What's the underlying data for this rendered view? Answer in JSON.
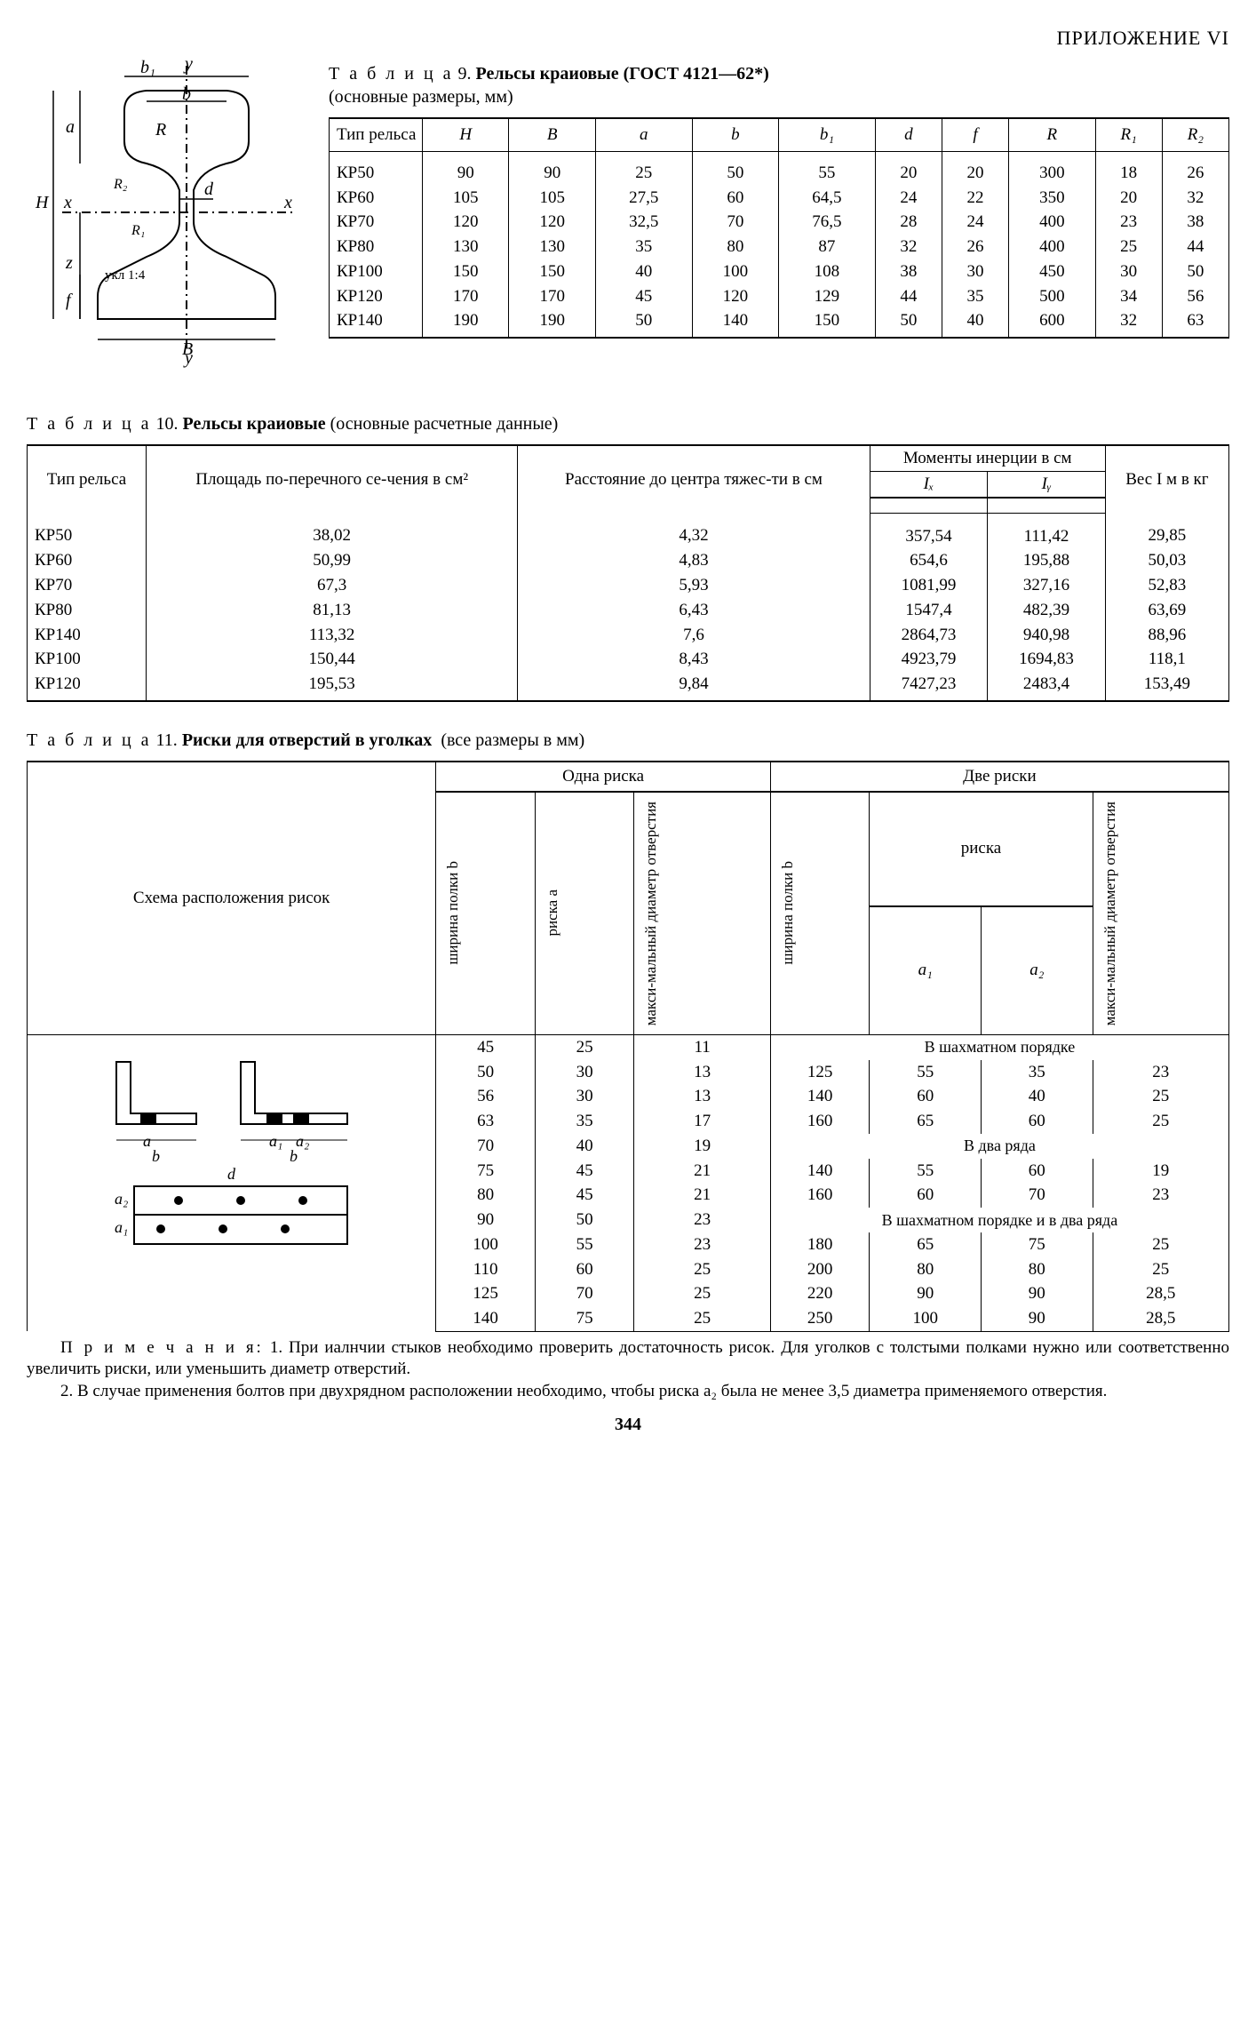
{
  "appendix": "ПРИЛОЖЕНИЕ VI",
  "table9": {
    "caption_prefix": "Т а б л и ц а",
    "caption_num": "9.",
    "caption_title": "Рельсы краиовые (ГОСТ 4121—62*)",
    "caption_sub": "(основные размеры, мм)",
    "headers": [
      "Тип рельса",
      "H",
      "B",
      "a",
      "b",
      "b₁",
      "d",
      "f",
      "R",
      "R₁",
      "R₂"
    ],
    "rows": [
      [
        "КР50",
        "90",
        "90",
        "25",
        "50",
        "55",
        "20",
        "20",
        "300",
        "18",
        "26"
      ],
      [
        "КР60",
        "105",
        "105",
        "27,5",
        "60",
        "64,5",
        "24",
        "22",
        "350",
        "20",
        "32"
      ],
      [
        "КР70",
        "120",
        "120",
        "32,5",
        "70",
        "76,5",
        "28",
        "24",
        "400",
        "23",
        "38"
      ],
      [
        "КР80",
        "130",
        "130",
        "35",
        "80",
        "87",
        "32",
        "26",
        "400",
        "25",
        "44"
      ],
      [
        "КР100",
        "150",
        "150",
        "40",
        "100",
        "108",
        "38",
        "30",
        "450",
        "30",
        "50"
      ],
      [
        "КР120",
        "170",
        "170",
        "45",
        "120",
        "129",
        "44",
        "35",
        "500",
        "34",
        "56"
      ],
      [
        "КР140",
        "190",
        "190",
        "50",
        "140",
        "150",
        "50",
        "40",
        "600",
        "32",
        "63"
      ]
    ]
  },
  "table10": {
    "caption_prefix": "Т а б л и ц а",
    "caption_num": "10.",
    "caption_title": "Рельсы краиовые",
    "caption_sub": "(основные расчетные данные)",
    "headers": {
      "c1": "Тип рельса",
      "c2": "Площадь по-перечного се-чения в см²",
      "c3": "Расстояние до центра тяжес-ти в см",
      "c4_top": "Моменты инерции в см",
      "c4a": "Iₓ",
      "c4b": "Iᵧ",
      "c5": "Вес I м в кг"
    },
    "rows": [
      [
        "КР50",
        "38,02",
        "4,32",
        "357,54",
        "111,42",
        "29,85"
      ],
      [
        "КР60",
        "50,99",
        "4,83",
        "654,6",
        "195,88",
        "50,03"
      ],
      [
        "КР70",
        "67,3",
        "5,93",
        "1081,99",
        "327,16",
        "52,83"
      ],
      [
        "КР80",
        "81,13",
        "6,43",
        "1547,4",
        "482,39",
        "63,69"
      ],
      [
        "КР140",
        "113,32",
        "7,6",
        "2864,73",
        "940,98",
        "88,96"
      ],
      [
        "КР100",
        "150,44",
        "8,43",
        "4923,79",
        "1694,83",
        "118,1"
      ],
      [
        "КР120",
        "195,53",
        "9,84",
        "7427,23",
        "2483,4",
        "153,49"
      ]
    ]
  },
  "table11": {
    "caption_prefix": "Т а б л и ц а",
    "caption_num": "11.",
    "caption_title": "Риски для отверстий в уголках",
    "caption_sub": "(все размеры в мм)",
    "headers": {
      "scheme": "Схема расположения рисок",
      "one": "Одна риска",
      "two": "Две риски",
      "width_b": "ширина полки b",
      "mark_a": "риска a",
      "max_d": "макси-мальный диаметр отверстия",
      "mark": "риска",
      "a1": "a₁",
      "a2": "a₂"
    },
    "note_stagger": "В шахматном порядке",
    "note_two_rows": "В два ряда",
    "note_both": "В шахматном порядке и в два ряда",
    "rows_left": [
      [
        "45",
        "25",
        "11"
      ],
      [
        "50",
        "30",
        "13"
      ],
      [
        "56",
        "30",
        "13"
      ],
      [
        "63",
        "35",
        "17"
      ],
      [
        "70",
        "40",
        "19"
      ],
      [
        "75",
        "45",
        "21"
      ],
      [
        "80",
        "45",
        "21"
      ],
      [
        "90",
        "50",
        "23"
      ],
      [
        "100",
        "55",
        "23"
      ],
      [
        "110",
        "60",
        "25"
      ],
      [
        "125",
        "70",
        "25"
      ],
      [
        "140",
        "75",
        "25"
      ]
    ],
    "rows_right_group1": [
      [
        "125",
        "55",
        "35",
        "23"
      ],
      [
        "140",
        "60",
        "40",
        "25"
      ],
      [
        "160",
        "65",
        "60",
        "25"
      ]
    ],
    "rows_right_group2": [
      [
        "140",
        "55",
        "60",
        "19"
      ],
      [
        "160",
        "60",
        "70",
        "23"
      ]
    ],
    "rows_right_group3": [
      [
        "180",
        "65",
        "75",
        "25"
      ],
      [
        "200",
        "80",
        "80",
        "25"
      ],
      [
        "220",
        "90",
        "90",
        "28,5"
      ],
      [
        "250",
        "100",
        "90",
        "28,5"
      ]
    ]
  },
  "notes": {
    "label": "П р и м е ч а н и я:",
    "n1": "1. При иалнчии стыков необходимо проверить достаточность рисок. Для уголков с толстыми полками нужно или соответственно увеличить риски, или уменьшить диаметр отверстий.",
    "n2": "2. В случае применения болтов при двухрядном расположении необходимо, чтобы риска a₂ была не менее 3,5 диаметра применяемого отверстия."
  },
  "page_number": "344",
  "diagram_labels": {
    "y_top": "y",
    "y_bot": "y",
    "x_left": "x",
    "x_right": "x",
    "b1": "b₁",
    "b": "b",
    "B": "B",
    "H": "H",
    "a": "a",
    "z": "z",
    "f": "f",
    "d": "d",
    "R": "R",
    "R1": "R₁",
    "R2": "R₂",
    "slope": "укл 1:4"
  }
}
